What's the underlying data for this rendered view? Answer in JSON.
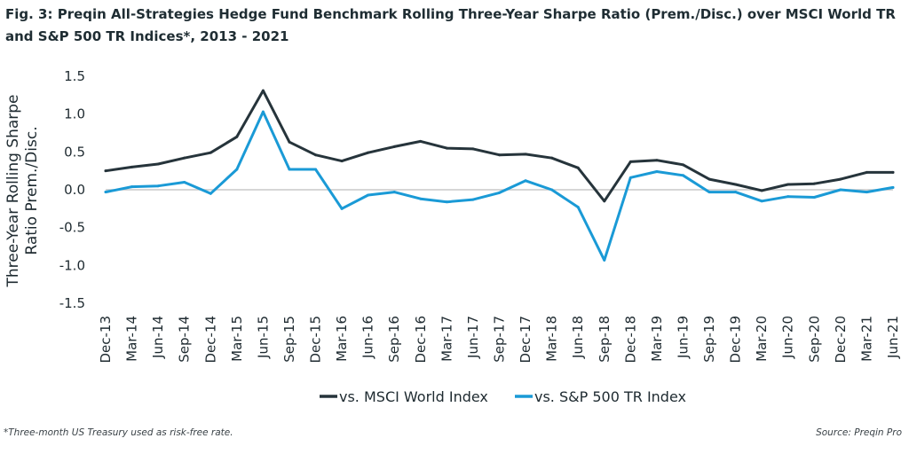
{
  "title": "Fig. 3: Preqin All-Strategies Hedge Fund Benchmark Rolling Three-Year Sharpe Ratio (Prem./Disc.) over MSCI World TR and S&P 500 TR Indices*, 2013 - 2021",
  "footnote": "*Three-month US Treasury used as risk-free rate.",
  "source": "Source: Preqin Pro",
  "colors": {
    "msci": "#26343b",
    "sp500": "#1a9ad6",
    "zero_line": "#c8c8c8",
    "text": "#1e2a30"
  },
  "chart_data": {
    "type": "line",
    "title": "Fig. 3: Preqin All-Strategies Hedge Fund Benchmark Rolling Three-Year Sharpe Ratio (Prem./Disc.) over MSCI World TR and S&P 500 TR Indices*, 2013 - 2021",
    "xlabel": "",
    "ylabel_lines": [
      "Three-Year Rolling Sharpe",
      "Ratio Prem./Disc."
    ],
    "ylim": [
      -1.5,
      1.5
    ],
    "yticks": [
      1.5,
      1.0,
      0.5,
      0.0,
      -0.5,
      -1.0,
      -1.5
    ],
    "ytick_labels": [
      "1.5",
      "1.0",
      "0.5",
      "0.0",
      "-0.5",
      "-1.0",
      "-1.5"
    ],
    "grid": false,
    "legend_position": "bottom-center",
    "categories": [
      "Dec-13",
      "Mar-14",
      "Jun-14",
      "Sep-14",
      "Dec-14",
      "Mar-15",
      "Jun-15",
      "Sep-15",
      "Dec-15",
      "Mar-16",
      "Jun-16",
      "Sep-16",
      "Dec-16",
      "Mar-17",
      "Jun-17",
      "Sep-17",
      "Dec-17",
      "Mar-18",
      "Jun-18",
      "Sep-18",
      "Dec-18",
      "Mar-19",
      "Jun-19",
      "Sep-19",
      "Dec-19",
      "Mar-20",
      "Jun-20",
      "Sep-20",
      "Dec-20",
      "Mar-21",
      "Jun-21"
    ],
    "series": [
      {
        "name": "vs. MSCI World Index",
        "color": "#26343b",
        "values": [
          0.25,
          0.3,
          0.34,
          0.42,
          0.49,
          0.7,
          1.31,
          0.63,
          0.46,
          0.38,
          0.49,
          0.57,
          0.64,
          0.55,
          0.54,
          0.46,
          0.47,
          0.42,
          0.29,
          -0.15,
          0.37,
          0.39,
          0.33,
          0.14,
          0.07,
          -0.01,
          0.07,
          0.08,
          0.14,
          0.23,
          0.23
        ]
      },
      {
        "name": "vs. S&P 500 TR Index",
        "color": "#1a9ad6",
        "values": [
          -0.03,
          0.04,
          0.05,
          0.1,
          -0.05,
          0.27,
          1.03,
          0.27,
          0.27,
          -0.25,
          -0.07,
          -0.03,
          -0.12,
          -0.16,
          -0.13,
          -0.04,
          0.12,
          0.0,
          -0.23,
          -0.93,
          0.16,
          0.24,
          0.19,
          -0.03,
          -0.03,
          -0.15,
          -0.09,
          -0.1,
          0.0,
          -0.03,
          0.03
        ]
      }
    ]
  }
}
